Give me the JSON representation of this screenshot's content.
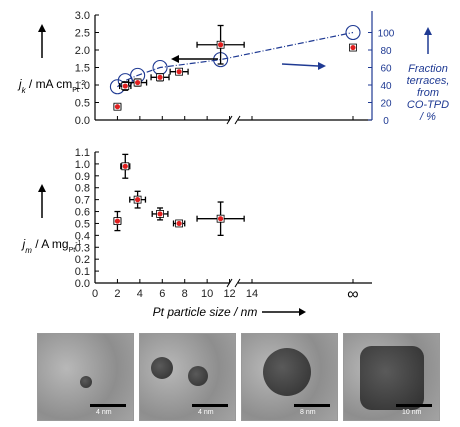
{
  "chart_data": [
    {
      "type": "scatter",
      "panel": "top",
      "ylabel_main": "j",
      "ylabel_sub": "k",
      "ylabel_unit": " / mA cm",
      "ylabel_unit_sub": "Pt",
      "ylabel_unit_sup": "-2",
      "ylim": [
        0,
        3.0
      ],
      "yticks": [
        "0.0",
        "0.5",
        "1.0",
        "1.5",
        "2.0",
        "2.5",
        "3.0"
      ],
      "x_break": true,
      "series": [
        {
          "points": [
            {
              "x": 2.0,
              "y": 0.38,
              "xerr": 0.3,
              "yerr": 0.06
            },
            {
              "x": 2.7,
              "y": 0.97,
              "xerr": 0.5,
              "yerr": 0.12
            },
            {
              "x": 3.8,
              "y": 1.07,
              "xerr": 0.8,
              "yerr": 0.1
            },
            {
              "x": 5.8,
              "y": 1.22,
              "xerr": 0.8,
              "yerr": 0.1
            },
            {
              "x": 7.5,
              "y": 1.38,
              "xerr": 0.8,
              "yerr": 0.05
            },
            {
              "x": 11.2,
              "y": 2.15,
              "xerr": 2.1,
              "yerr": 0.55
            },
            {
              "x": "inf",
              "y": 2.07,
              "xerr": 0,
              "yerr": 0.08
            }
          ]
        },
        {
          "axis": "right",
          "style": "dash-dot-circles",
          "points": [
            {
              "x": 2.0,
              "y": 38
            },
            {
              "x": 2.7,
              "y": 45
            },
            {
              "x": 3.8,
              "y": 51
            },
            {
              "x": 5.8,
              "y": 60
            },
            {
              "x": 11.2,
              "y": 69
            },
            {
              "x": "inf",
              "y": 100
            }
          ]
        }
      ],
      "right_axis": {
        "ylim": [
          0,
          120
        ],
        "yticks": [
          "0",
          "20",
          "40",
          "60",
          "80",
          "100"
        ],
        "label_lines": [
          "Fraction",
          "terraces,",
          "from",
          "CO-TPD",
          "/ %"
        ]
      }
    },
    {
      "type": "scatter",
      "panel": "bottom",
      "ylabel_main": "j",
      "ylabel_sub": "m",
      "ylabel_unit": " / A mg",
      "ylabel_unit_sub": "Pt",
      "ylabel_unit_sup": "-1",
      "ylim": [
        0,
        1.1
      ],
      "yticks": [
        "0.0",
        "0.1",
        "0.2",
        "0.3",
        "0.4",
        "0.5",
        "0.6",
        "0.7",
        "0.8",
        "0.9",
        "1.0",
        "1.1"
      ],
      "xlabel": "Pt particle size / nm",
      "xlim": [
        0,
        14
      ],
      "xticks": [
        "0",
        "2",
        "4",
        "6",
        "8",
        "10",
        "12",
        "14"
      ],
      "inf_tick": "∞",
      "series": [
        {
          "points": [
            {
              "x": 2.0,
              "y": 0.52,
              "xerr": 0.3,
              "yerr": 0.08
            },
            {
              "x": 2.7,
              "y": 0.98,
              "xerr": 0.4,
              "yerr": 0.1
            },
            {
              "x": 3.8,
              "y": 0.7,
              "xerr": 0.7,
              "yerr": 0.07
            },
            {
              "x": 5.8,
              "y": 0.58,
              "xerr": 0.7,
              "yerr": 0.05
            },
            {
              "x": 7.5,
              "y": 0.5,
              "xerr": 0.5,
              "yerr": 0.02
            },
            {
              "x": 11.2,
              "y": 0.54,
              "xerr": 2.1,
              "yerr": 0.14
            }
          ]
        }
      ]
    }
  ],
  "tem_images": [
    {
      "scale_label": "4 nm"
    },
    {
      "scale_label": "4 nm"
    },
    {
      "scale_label": "8 nm"
    },
    {
      "scale_label": "10 nm"
    }
  ],
  "colors": {
    "marker_fill": "#e02020",
    "axis_right": "#1f3a93",
    "errorbar": "#000000"
  }
}
